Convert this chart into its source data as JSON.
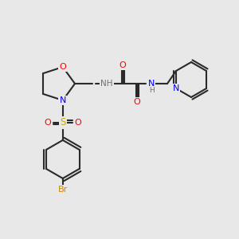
{
  "bg_color": "#e8e8e8",
  "bond_color": "#2a2a2a",
  "bond_width": 1.5,
  "atom_colors": {
    "O": "#ff0000",
    "N": "#0000ff",
    "S": "#ccaa00",
    "Br": "#cc8800",
    "H": "#707070",
    "C": "#2a2a2a"
  },
  "font_size": 7.5
}
